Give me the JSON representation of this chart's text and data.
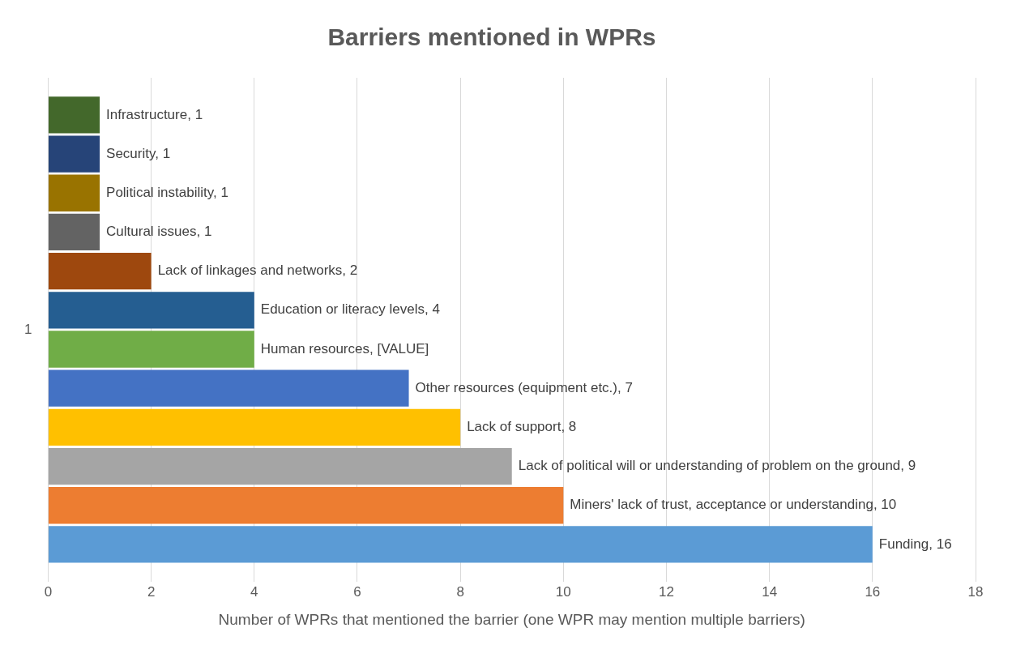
{
  "chart_data": {
    "type": "bar",
    "orientation": "horizontal",
    "title": "Barriers mentioned in WPRs",
    "xlabel": "Number of WPRs that mentioned the barrier (one WPR may mention multiple barriers)",
    "categories": [
      "1"
    ],
    "xlim": [
      0,
      18
    ],
    "xticks": [
      0,
      2,
      4,
      6,
      8,
      10,
      12,
      14,
      16,
      18
    ],
    "grid": "x",
    "series": [
      {
        "color": "#43682b",
        "values": [
          1
        ],
        "value_labels": [
          "Infrastructure, 1"
        ]
      },
      {
        "color": "#264478",
        "values": [
          1
        ],
        "value_labels": [
          "Security, 1"
        ]
      },
      {
        "color": "#997300",
        "values": [
          1
        ],
        "value_labels": [
          "Political instability, 1"
        ]
      },
      {
        "color": "#636363",
        "values": [
          1
        ],
        "value_labels": [
          "Cultural issues, 1"
        ]
      },
      {
        "color": "#9e480e",
        "values": [
          2
        ],
        "value_labels": [
          "Lack of linkages and networks, 2"
        ]
      },
      {
        "color": "#255e91",
        "values": [
          4
        ],
        "value_labels": [
          "Education or literacy levels, 4"
        ]
      },
      {
        "color": "#70ad47",
        "values": [
          4
        ],
        "value_labels": [
          "Human resources, [VALUE]"
        ]
      },
      {
        "color": "#4472c4",
        "values": [
          7
        ],
        "value_labels": [
          "Other resources (equipment etc.), 7"
        ]
      },
      {
        "color": "#ffc000",
        "values": [
          8
        ],
        "value_labels": [
          "Lack of support, 8"
        ]
      },
      {
        "color": "#a5a5a5",
        "values": [
          9
        ],
        "value_labels": [
          "Lack of political will or understanding of problem on the ground, 9"
        ]
      },
      {
        "color": "#ed7d31",
        "values": [
          10
        ],
        "value_labels": [
          "Miners' lack of trust, acceptance or understanding, 10"
        ]
      },
      {
        "color": "#5b9bd5",
        "values": [
          16
        ],
        "value_labels": [
          "Funding, 16"
        ]
      }
    ]
  }
}
